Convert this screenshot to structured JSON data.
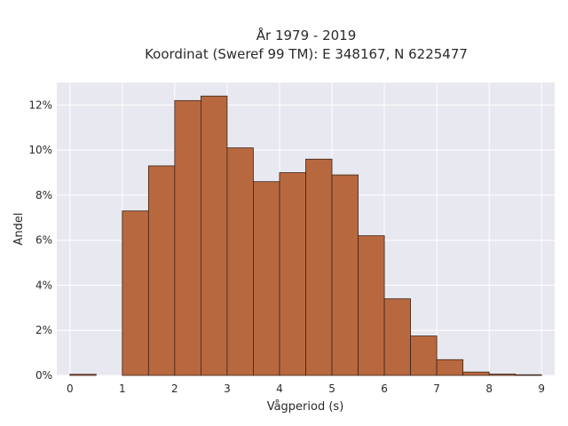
{
  "chart_data": {
    "type": "bar",
    "title": "År 1979 - 2019",
    "subtitle": "Koordinat (Sweref 99 TM): E 348167, N 6225477",
    "xlabel": "Vågperiod (s)",
    "ylabel": "Andel",
    "xlim": [
      -0.25,
      9.25
    ],
    "ylim": [
      0,
      13
    ],
    "x_ticks": [
      0,
      1,
      2,
      3,
      4,
      5,
      6,
      7,
      8,
      9
    ],
    "y_ticks": [
      0,
      2,
      4,
      6,
      8,
      10,
      12
    ],
    "y_tick_labels": [
      "0%",
      "2%",
      "4%",
      "6%",
      "8%",
      "10%",
      "12%"
    ],
    "bin_width": 0.5,
    "bin_starts": [
      0,
      1,
      1.5,
      2,
      2.5,
      3,
      3.5,
      4,
      4.5,
      5,
      5.5,
      6,
      6.5,
      7,
      7.5,
      8,
      8.5
    ],
    "values": [
      0.05,
      7.3,
      9.3,
      12.2,
      12.4,
      10.1,
      8.6,
      9.0,
      9.6,
      8.9,
      6.2,
      3.4,
      1.75,
      0.7,
      0.15,
      0.06,
      0.03
    ],
    "grid": true,
    "colors": {
      "bar_fill": "#b8683f",
      "bar_stroke": "#3d2418",
      "plot_background": "#e8e8f0",
      "grid": "#ffffff"
    }
  }
}
